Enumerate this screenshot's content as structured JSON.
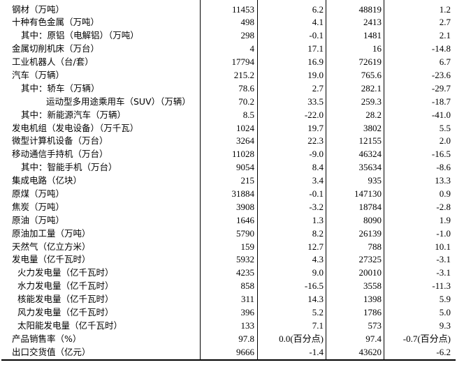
{
  "rows": [
    {
      "label": "",
      "indent": 0,
      "v": [
        "",
        "",
        "",
        ""
      ]
    },
    {
      "label": "钢材（万吨）",
      "indent": 0,
      "v": [
        "11453",
        "6.2",
        "48819",
        "1.2"
      ]
    },
    {
      "label": "十种有色金属（万吨）",
      "indent": 0,
      "v": [
        "498",
        "4.1",
        "2413",
        "2.7"
      ]
    },
    {
      "label": "其中：原铝（电解铝）（万吨）",
      "indent": 1,
      "v": [
        "298",
        "-0.1",
        "1481",
        "2.1"
      ]
    },
    {
      "label": "金属切削机床（万台）",
      "indent": 0,
      "v": [
        "4",
        "17.1",
        "16",
        "-14.8"
      ]
    },
    {
      "label": "工业机器人（台/套）",
      "indent": 0,
      "v": [
        "17794",
        "16.9",
        "72619",
        "6.7"
      ]
    },
    {
      "label": "汽车（万辆）",
      "indent": 0,
      "v": [
        "215.2",
        "19.0",
        "765.6",
        "-23.6"
      ]
    },
    {
      "label": "其中：轿车（万辆）",
      "indent": 1,
      "v": [
        "78.6",
        "2.7",
        "282.1",
        "-29.7"
      ]
    },
    {
      "label": "运动型多用途乘用车（SUV）（万辆）",
      "indent": 2,
      "v": [
        "70.2",
        "33.5",
        "259.3",
        "-18.7"
      ]
    },
    {
      "label": "其中：新能源汽车（万辆）",
      "indent": 1,
      "v": [
        "8.5",
        "-22.0",
        "28.2",
        "-41.0"
      ]
    },
    {
      "label": "发电机组（发电设备）（万千瓦）",
      "indent": 0,
      "v": [
        "1024",
        "19.7",
        "3802",
        "5.5"
      ]
    },
    {
      "label": "微型计算机设备（万台）",
      "indent": 0,
      "v": [
        "3264",
        "22.3",
        "12155",
        "2.0"
      ]
    },
    {
      "label": "移动通信手持机（万台）",
      "indent": 0,
      "v": [
        "11028",
        "-9.0",
        "46324",
        "-16.5"
      ]
    },
    {
      "label": "其中：智能手机（万台）",
      "indent": 1,
      "v": [
        "9054",
        "8.4",
        "35634",
        "-8.6"
      ]
    },
    {
      "label": "集成电路（亿块）",
      "indent": 0,
      "v": [
        "215",
        "3.4",
        "935",
        "13.3"
      ]
    },
    {
      "label": "原煤（万吨）",
      "indent": 0,
      "v": [
        "31884",
        "-0.1",
        "147130",
        "0.9"
      ]
    },
    {
      "label": "焦炭（万吨）",
      "indent": 0,
      "v": [
        "3908",
        "-3.2",
        "18784",
        "-2.8"
      ]
    },
    {
      "label": "原油（万吨）",
      "indent": 0,
      "v": [
        "1646",
        "1.3",
        "8090",
        "1.9"
      ]
    },
    {
      "label": "原油加工量（万吨）",
      "indent": 0,
      "v": [
        "5790",
        "8.2",
        "26139",
        "-1.0"
      ]
    },
    {
      "label": "天然气（亿立方米）",
      "indent": 0,
      "v": [
        "159",
        "12.7",
        "788",
        "10.1"
      ]
    },
    {
      "label": "发电量（亿千瓦时）",
      "indent": 0,
      "v": [
        "5932",
        "4.3",
        "27325",
        "-3.1"
      ]
    },
    {
      "label": "火力发电量（亿千瓦时）",
      "indent": 3,
      "v": [
        "4235",
        "9.0",
        "20010",
        "-3.1"
      ]
    },
    {
      "label": "水力发电量（亿千瓦时）",
      "indent": 3,
      "v": [
        "858",
        "-16.5",
        "3558",
        "-11.3"
      ]
    },
    {
      "label": "核能发电量（亿千瓦时）",
      "indent": 3,
      "v": [
        "311",
        "14.3",
        "1398",
        "5.9"
      ]
    },
    {
      "label": "风力发电量（亿千瓦时）",
      "indent": 3,
      "v": [
        "396",
        "5.2",
        "1786",
        "5.0"
      ]
    },
    {
      "label": "太阳能发电量（亿千瓦时）",
      "indent": 3,
      "v": [
        "133",
        "7.1",
        "573",
        "9.3"
      ]
    },
    {
      "label": "产品销售率（%）",
      "indent": 0,
      "v": [
        "97.8",
        "0.0(百分点)",
        "97.4",
        "-0.7(百分点)"
      ]
    },
    {
      "label": "出口交货值（亿元）",
      "indent": 0,
      "v": [
        "9666",
        "-1.4",
        "43620",
        "-6.2"
      ]
    }
  ]
}
